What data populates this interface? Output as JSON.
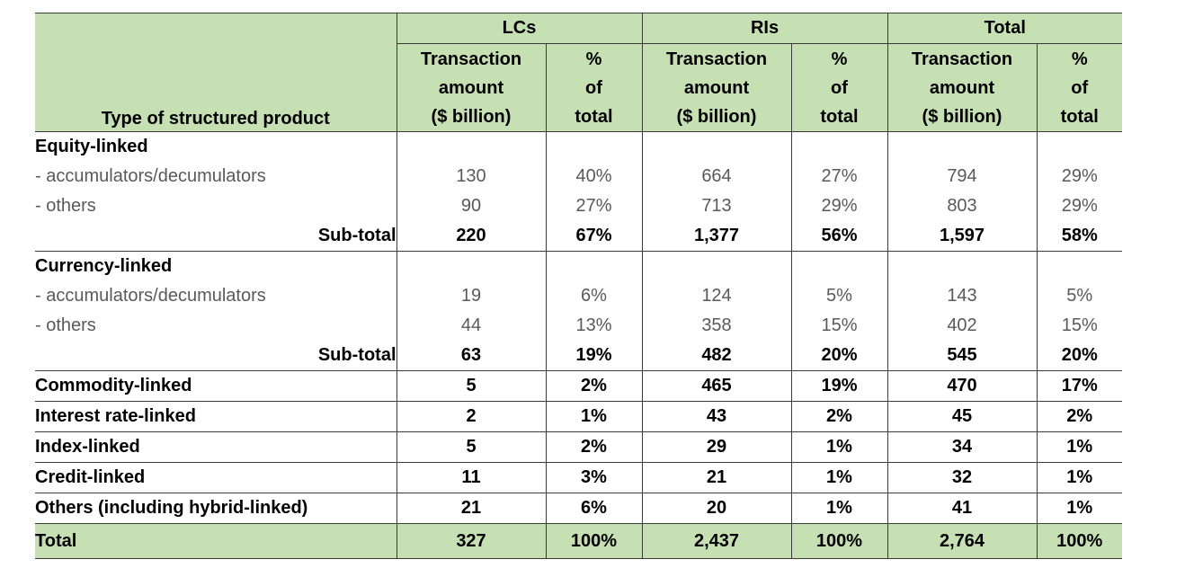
{
  "header": {
    "groups": [
      "LCs",
      "RIs",
      "Total"
    ],
    "first_col": "Type of structured product",
    "amount_col": [
      "Transaction",
      "amount",
      "($ billion)"
    ],
    "pct_col": [
      "%",
      "of",
      "total"
    ]
  },
  "equity": {
    "title": "Equity-linked",
    "items": [
      {
        "label": "-  accumulators/decumulators",
        "lc_amt": "130",
        "lc_pct": "40%",
        "ri_amt": "664",
        "ri_pct": "27%",
        "t_amt": "794",
        "t_pct": "29%"
      },
      {
        "label": "-  others",
        "lc_amt": "90",
        "lc_pct": "27%",
        "ri_amt": "713",
        "ri_pct": "29%",
        "t_amt": "803",
        "t_pct": "29%"
      }
    ],
    "subtotal": {
      "label": "Sub-total",
      "lc_amt": "220",
      "lc_pct": "67%",
      "ri_amt": "1,377",
      "ri_pct": "56%",
      "t_amt": "1,597",
      "t_pct": "58%"
    }
  },
  "currency": {
    "title": "Currency-linked",
    "items": [
      {
        "label": "-  accumulators/decumulators",
        "lc_amt": "19",
        "lc_pct": "6%",
        "ri_amt": "124",
        "ri_pct": "5%",
        "t_amt": "143",
        "t_pct": "5%"
      },
      {
        "label": "-  others",
        "lc_amt": "44",
        "lc_pct": "13%",
        "ri_amt": "358",
        "ri_pct": "15%",
        "t_amt": "402",
        "t_pct": "15%"
      }
    ],
    "subtotal": {
      "label": "Sub-total",
      "lc_amt": "63",
      "lc_pct": "19%",
      "ri_amt": "482",
      "ri_pct": "20%",
      "t_amt": "545",
      "t_pct": "20%"
    }
  },
  "others": [
    {
      "label": "Commodity-linked",
      "lc_amt": "5",
      "lc_pct": "2%",
      "ri_amt": "465",
      "ri_pct": "19%",
      "t_amt": "470",
      "t_pct": "17%"
    },
    {
      "label": "Interest rate-linked",
      "lc_amt": "2",
      "lc_pct": "1%",
      "ri_amt": "43",
      "ri_pct": "2%",
      "t_amt": "45",
      "t_pct": "2%"
    },
    {
      "label": "Index-linked",
      "lc_amt": "5",
      "lc_pct": "2%",
      "ri_amt": "29",
      "ri_pct": "1%",
      "t_amt": "34",
      "t_pct": "1%"
    },
    {
      "label": "Credit-linked",
      "lc_amt": "11",
      "lc_pct": "3%",
      "ri_amt": "21",
      "ri_pct": "1%",
      "t_amt": "32",
      "t_pct": "1%"
    },
    {
      "label": "Others (including hybrid-linked)",
      "lc_amt": "21",
      "lc_pct": "6%",
      "ri_amt": "20",
      "ri_pct": "1%",
      "t_amt": "41",
      "t_pct": "1%"
    }
  ],
  "total": {
    "label": "Total",
    "lc_amt": "327",
    "lc_pct": "100%",
    "ri_amt": "2,437",
    "ri_pct": "100%",
    "t_amt": "2,764",
    "t_pct": "100%"
  }
}
